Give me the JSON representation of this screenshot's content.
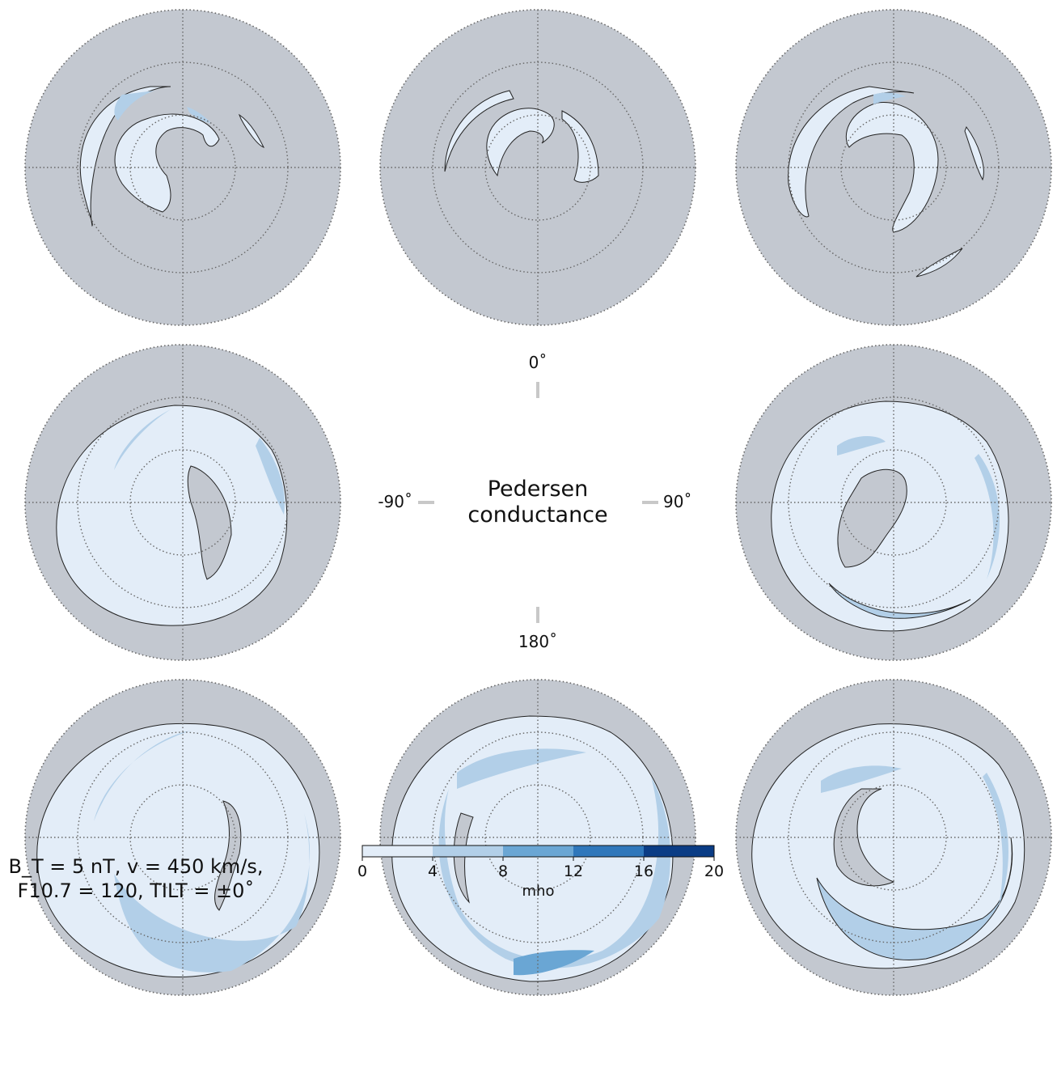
{
  "chart_data": {
    "type": "heatmap",
    "title": "Pedersen\nconductance",
    "title_lines": [
      "Pedersen",
      "conductance"
    ],
    "clock_angle_labels": {
      "top": "0˚",
      "left": "-90˚",
      "right": "90˚",
      "bottom": "180˚"
    },
    "parameters": {
      "line1": "B_T = 5 nT, v = 450 km/s,",
      "line2": "F10.7 = 120, TILT = ±0˚"
    },
    "colorbar": {
      "label": "mho",
      "ticks": [
        0,
        4,
        8,
        12,
        16,
        20
      ],
      "range": [
        0,
        20
      ],
      "colors": [
        "#e3edf8",
        "#b2cfe8",
        "#6aa6d4",
        "#2f77bb",
        "#0a3c85"
      ]
    },
    "panels": [
      {
        "clock_angle": -45,
        "position": "top-left"
      },
      {
        "clock_angle": 0,
        "position": "top-center"
      },
      {
        "clock_angle": 45,
        "position": "top-right"
      },
      {
        "clock_angle": -90,
        "position": "middle-left"
      },
      {
        "clock_angle": 90,
        "position": "middle-right"
      },
      {
        "clock_angle": -135,
        "position": "bottom-left"
      },
      {
        "clock_angle": 180,
        "position": "bottom-center"
      },
      {
        "clock_angle": 135,
        "position": "bottom-right"
      }
    ],
    "colors": {
      "background_disk": "#c3c8d0",
      "level1": "#e3edf8",
      "level2": "#b2cfe8",
      "level3": "#6aa6d4",
      "mask": "#b8bec6"
    }
  }
}
